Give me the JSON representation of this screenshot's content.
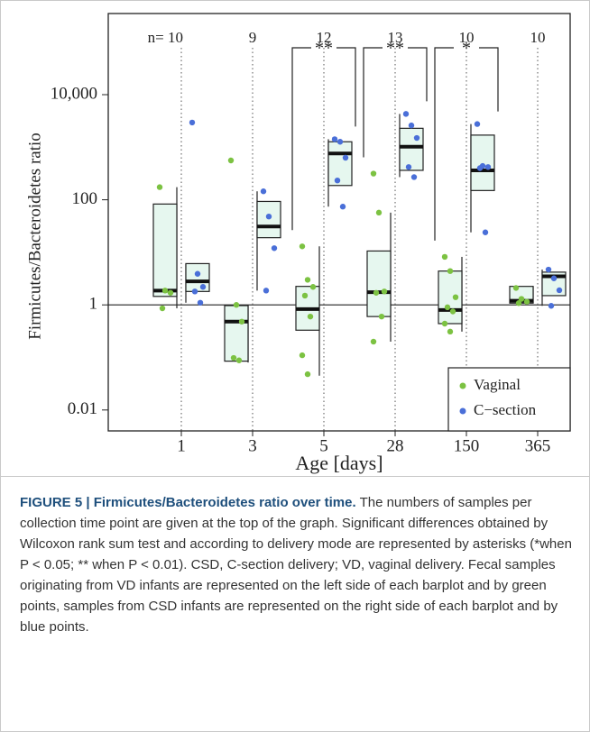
{
  "chart_data": {
    "type": "box",
    "y_label": "Firmicutes/Bacteroidetes ratio",
    "x_label": "Age [days]",
    "categories": [
      "1",
      "3",
      "5",
      "28",
      "150",
      "365"
    ],
    "n_labels": [
      "n= 10",
      "9",
      "12",
      "13",
      "10",
      "10"
    ],
    "significance": [
      null,
      null,
      "**",
      "**",
      "*",
      null
    ],
    "ylog": true,
    "ylim": [
      0.004,
      350000
    ],
    "yticks": [
      0.01,
      1,
      100,
      {
        "value": 10000,
        "label": "10,000"
      }
    ],
    "hline": 1,
    "legend": "bottom-right",
    "box_color": "#e6f7ef",
    "series": [
      {
        "name": "Vaginal",
        "color": "#7cc242",
        "boxes": [
          {
            "low": 0.86,
            "q1": 1.45,
            "median": 1.87,
            "q3": 83,
            "high": 174
          },
          {
            "low": 0.08,
            "q1": 0.085,
            "median": 0.48,
            "q3": 0.97,
            "high": 1
          },
          {
            "low": 0.045,
            "q1": 0.33,
            "median": 0.83,
            "q3": 2.25,
            "high": 13
          },
          {
            "low": 0.2,
            "q1": 0.6,
            "median": 1.74,
            "q3": 10.6,
            "high": 57
          },
          {
            "low": 0.31,
            "q1": 0.44,
            "median": 0.8,
            "q3": 4.4,
            "high": 8.2
          },
          {
            "low": 1.08,
            "q1": 1.08,
            "median": 1.2,
            "q3": 2.25,
            "high": 2.25
          }
        ],
        "points": [
          [
            174,
            1.87,
            1.7,
            0.86
          ],
          [
            560,
            1,
            0.48,
            0.098,
            0.088
          ],
          [
            13,
            3.0,
            2.2,
            1.5,
            0.6,
            0.11,
            0.048
          ],
          [
            315,
            57,
            1.8,
            1.7,
            0.6,
            0.2
          ],
          [
            8.2,
            4.4,
            1.4,
            0.9,
            0.75,
            0.44,
            0.31
          ],
          [
            2.1,
            1.3,
            1.15,
            1.08
          ]
        ]
      },
      {
        "name": "C−section",
        "color": "#4a6fd8",
        "boxes": [
          {
            "low": 1.1,
            "q1": 1.8,
            "median": 2.8,
            "q3": 6.1,
            "high": 6.1
          },
          {
            "low": 1.87,
            "q1": 19,
            "median": 31,
            "q3": 93,
            "high": 145
          },
          {
            "low": 74,
            "q1": 187,
            "median": 760,
            "q3": 1270,
            "high": 1420
          },
          {
            "low": 270,
            "q1": 363,
            "median": 1020,
            "q3": 2290,
            "high": 4300
          },
          {
            "low": 24,
            "q1": 150,
            "median": 363,
            "q3": 1700,
            "high": 2760
          },
          {
            "low": 0.96,
            "q1": 1.5,
            "median": 3.5,
            "q3": 4.2,
            "high": 4.7
          }
        ],
        "points": [
          [
            2950,
            3.9,
            2.2,
            1.8,
            1.1
          ],
          [
            145,
            48,
            12,
            1.87
          ],
          [
            1420,
            1270,
            630,
            233,
            74
          ],
          [
            4300,
            2600,
            1500,
            420,
            270
          ],
          [
            2760,
            440,
            420,
            400,
            24
          ],
          [
            4.7,
            3.2,
            1.9,
            0.96
          ]
        ]
      }
    ]
  },
  "caption": {
    "title": "FIGURE 5 | Firmicutes/Bacteroidetes ratio over time.",
    "text": "The numbers of samples per collection time point are given at the top of the graph. Significant differences obtained by Wilcoxon rank sum test and according to delivery mode are represented by asterisks (*when P < 0.05; ** when P < 0.01). CSD, C-section delivery; VD, vaginal delivery. Fecal samples originating from VD infants are represented on the left side of each barplot and by green points, samples from CSD infants are represented on the right side of each barplot and by blue points."
  }
}
